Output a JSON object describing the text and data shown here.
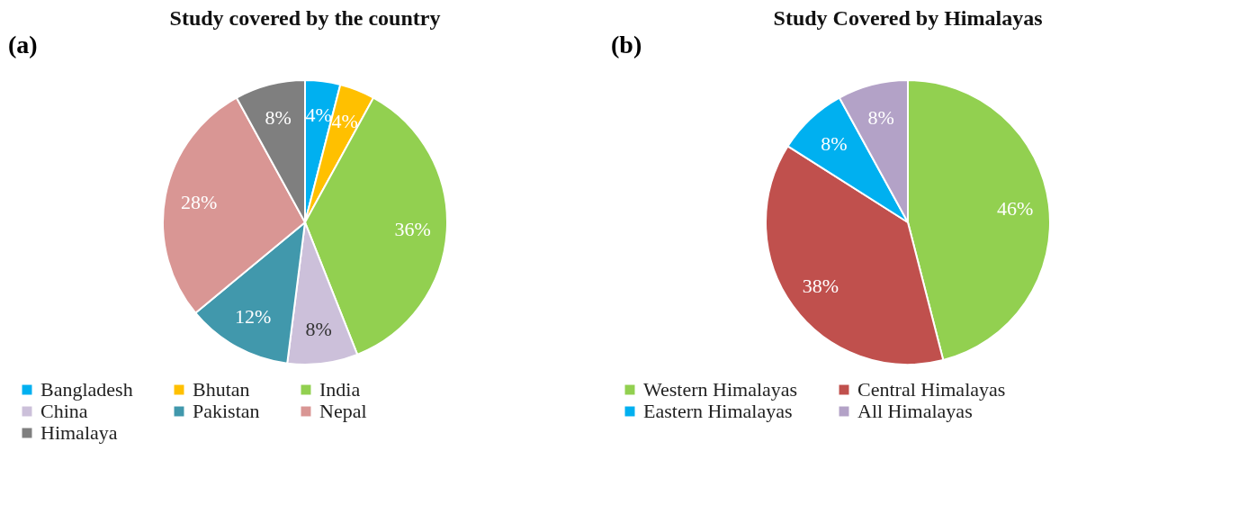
{
  "chart_data": [
    {
      "type": "pie",
      "title": "Study covered by the country",
      "annotations": [
        "(a)"
      ],
      "categories": [
        "Bangladesh",
        "Bhutan",
        "India",
        "China",
        "Pakistan",
        "Nepal",
        "Himalaya"
      ],
      "values": [
        4,
        4,
        36,
        8,
        12,
        28,
        8
      ],
      "value_labels": [
        "4%",
        "4%",
        "36%",
        "8%",
        "12%",
        "28%",
        "8%"
      ],
      "colors": [
        "#00b0f0",
        "#ffc000",
        "#92d050",
        "#ccc0da",
        "#4198ac",
        "#d99694",
        "#7f7f7f"
      ],
      "legend": "bottom"
    },
    {
      "type": "pie",
      "title": "Study Covered by Himalayas",
      "annotations": [
        "(b)"
      ],
      "categories": [
        "Western Himalayas",
        "Central Himalayas",
        "Eastern Himalayas",
        "All Himalayas"
      ],
      "values": [
        46,
        38,
        8,
        8
      ],
      "value_labels": [
        "46%",
        "38%",
        "8%",
        "8%"
      ],
      "colors": [
        "#92d050",
        "#c0504d",
        "#00b0f0",
        "#b3a2c7"
      ],
      "legend": "bottom"
    }
  ]
}
